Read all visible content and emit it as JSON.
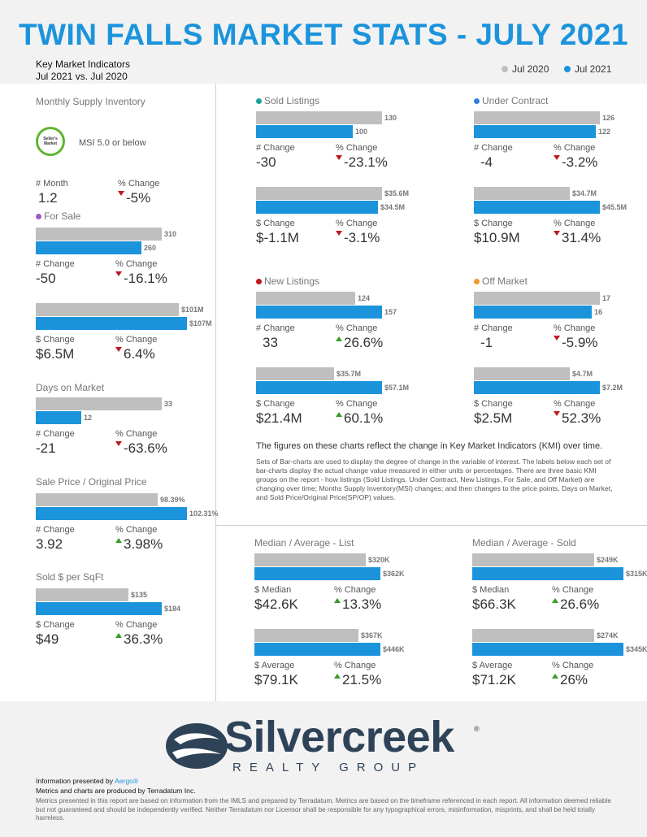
{
  "header": {
    "title": "TWIN FALLS MARKET STATS - JULY 2021",
    "subtitle_1": "Key Market Indicators",
    "subtitle_2": "Jul 2021 vs. Jul 2020",
    "legend": [
      {
        "label": "Jul 2020",
        "color": "#bfbfbf"
      },
      {
        "label": "Jul 2021",
        "color": "#1b94dc"
      }
    ]
  },
  "colors": {
    "prior": "#bfbfbf",
    "current": "#1b94dc",
    "up": "#3a9b28",
    "down": "#c0161e"
  },
  "msi": {
    "title": "Monthly Supply Inventory",
    "badge_line1": "Seller's",
    "badge_line2": "Market",
    "badge_text": "MSI 5.0 or below",
    "label_a": "# Month",
    "value_a": "1.2",
    "label_b": "% Change",
    "value_b": "-5%",
    "direction": "down"
  },
  "for_sale": {
    "title": "For Sale",
    "dot_color": "#9b59c6",
    "count": {
      "prior": 310,
      "current": 260,
      "prior_label": "310",
      "current_label": "260",
      "label_a": "# Change",
      "value_a": "-50",
      "label_b": "% Change",
      "value_b": "-16.1%",
      "direction": "down"
    },
    "volume": {
      "prior": 101,
      "current": 107,
      "prior_label": "$101M",
      "current_label": "$107M",
      "label_a": "$ Change",
      "value_a": "$6.5M",
      "label_b": "% Change",
      "value_b": "6.4%",
      "direction": "down"
    }
  },
  "days_on_market": {
    "title": "Days on Market",
    "prior": 33,
    "current": 12,
    "prior_label": "33",
    "current_label": "12",
    "label_a": "# Change",
    "value_a": "-21",
    "label_b": "% Change",
    "value_b": "-63.6%",
    "direction": "down"
  },
  "sale_price_ratio": {
    "title": "Sale Price / Original Price",
    "prior": 98.39,
    "current": 102.31,
    "prior_label": "98.39%",
    "current_label": "102.31%",
    "label_a": "# Change",
    "value_a": "3.92",
    "label_b": "% Change",
    "value_b": "3.98%",
    "direction": "up"
  },
  "sold_per_sqft": {
    "title": "Sold $ per SqFt",
    "prior": 135,
    "current": 184,
    "prior_label": "$135",
    "current_label": "$184",
    "label_a": "$ Change",
    "value_a": "$49",
    "label_b": "% Change",
    "value_b": "36.3%",
    "direction": "up"
  },
  "sold_listings": {
    "title": "Sold Listings",
    "dot_color": "#1aa39a",
    "count": {
      "prior": 130,
      "current": 100,
      "prior_label": "130",
      "current_label": "100",
      "label_a": "# Change",
      "value_a": "-30",
      "label_b": "% Change",
      "value_b": "-23.1%",
      "direction": "down"
    },
    "volume": {
      "prior": 35.6,
      "current": 34.5,
      "prior_label": "$35.6M",
      "current_label": "$34.5M",
      "label_a": "$ Change",
      "value_a": "$-1.1M",
      "label_b": "% Change",
      "value_b": "-3.1%",
      "direction": "down"
    }
  },
  "under_contract": {
    "title": "Under Contract",
    "dot_color": "#2f7fd8",
    "count": {
      "prior": 126,
      "current": 122,
      "prior_label": "126",
      "current_label": "122",
      "label_a": "# Change",
      "value_a": "-4",
      "label_b": "% Change",
      "value_b": "-3.2%",
      "direction": "down"
    },
    "volume": {
      "prior": 34.7,
      "current": 45.5,
      "prior_label": "$34.7M",
      "current_label": "$45.5M",
      "label_a": "$ Change",
      "value_a": "$10.9M",
      "label_b": "% Change",
      "value_b": "31.4%",
      "direction": "down"
    }
  },
  "new_listings": {
    "title": "New Listings",
    "dot_color": "#c0161e",
    "count": {
      "prior": 124,
      "current": 157,
      "prior_label": "124",
      "current_label": "157",
      "label_a": "# Change",
      "value_a": "33",
      "label_b": "% Change",
      "value_b": "26.6%",
      "direction": "up"
    },
    "volume": {
      "prior": 35.7,
      "current": 57.1,
      "prior_label": "$35.7M",
      "current_label": "$57.1M",
      "label_a": "$ Change",
      "value_a": "$21.4M",
      "label_b": "% Change",
      "value_b": "60.1%",
      "direction": "up"
    }
  },
  "off_market": {
    "title": "Off Market",
    "dot_color": "#f0962a",
    "count": {
      "prior": 17,
      "current": 16,
      "prior_label": "17",
      "current_label": "16",
      "label_a": "# Change",
      "value_a": "-1",
      "label_b": "% Change",
      "value_b": "-5.9%",
      "direction": "down"
    },
    "volume": {
      "prior": 4.7,
      "current": 7.2,
      "prior_label": "$4.7M",
      "current_label": "$7.2M",
      "label_a": "$ Change",
      "value_a": "$2.5M",
      "label_b": "% Change",
      "value_b": "52.3%",
      "direction": "down"
    }
  },
  "explanation": {
    "headline": "The figures on these charts reflect the change in Key Market Indicators (KMI) over time.",
    "body": "Sets of Bar-charts are used to display the degree of change in the variable of interest. The labels below each set of bar-charts display the actual change value measured in either units or percentages. There are three basic KMI groups on the report - how listings (Sold Listings, Under Contract, New Listings, For Sale, and Off Market) are changing over time; Months Supply Inventory(MSI) changes; and then changes to the price points, Days on Market, and Sold Price/Original Price(SP/OP) values."
  },
  "list_prices": {
    "title": "Median / Average - List",
    "median": {
      "prior": 320,
      "current": 362,
      "prior_label": "$320K",
      "current_label": "$362K",
      "label_a": "$ Median",
      "value_a": "$42.6K",
      "label_b": "% Change",
      "value_b": "13.3%",
      "direction": "up"
    },
    "average": {
      "prior": 367,
      "current": 446,
      "prior_label": "$367K",
      "current_label": "$446K",
      "label_a": "$ Average",
      "value_a": "$79.1K",
      "label_b": "% Change",
      "value_b": "21.5%",
      "direction": "up"
    }
  },
  "sold_prices": {
    "title": "Median / Average - Sold",
    "median": {
      "prior": 249,
      "current": 315,
      "prior_label": "$249K",
      "current_label": "$315K",
      "label_a": "$ Median",
      "value_a": "$66.3K",
      "label_b": "% Change",
      "value_b": "26.6%",
      "direction": "up"
    },
    "average": {
      "prior": 274,
      "current": 345,
      "prior_label": "$274K",
      "current_label": "$345K",
      "label_a": "$ Average",
      "value_a": "$71.2K",
      "label_b": "% Change",
      "value_b": "26%",
      "direction": "up"
    }
  },
  "footer": {
    "logo_word": "Silvercreek",
    "logo_reg": "®",
    "logo_sub": "REALTY GROUP",
    "presented_prefix": "Information presented by ",
    "presented_link": "Aergo®",
    "produced_by": "Metrics and charts are produced by Terradatum Inc.",
    "disclaimer": "Metrics presented in this report are based on information from the IMLS and prepared by Terradatum. Metrics are based on the timeframe referenced in each report. All information deemed reliable but not guaranteed and should be independently verified. Neither Terradatum nor Licensor shall be responsible for any typographical errors, misinformation, misprints, and shall be held totally harmless."
  }
}
